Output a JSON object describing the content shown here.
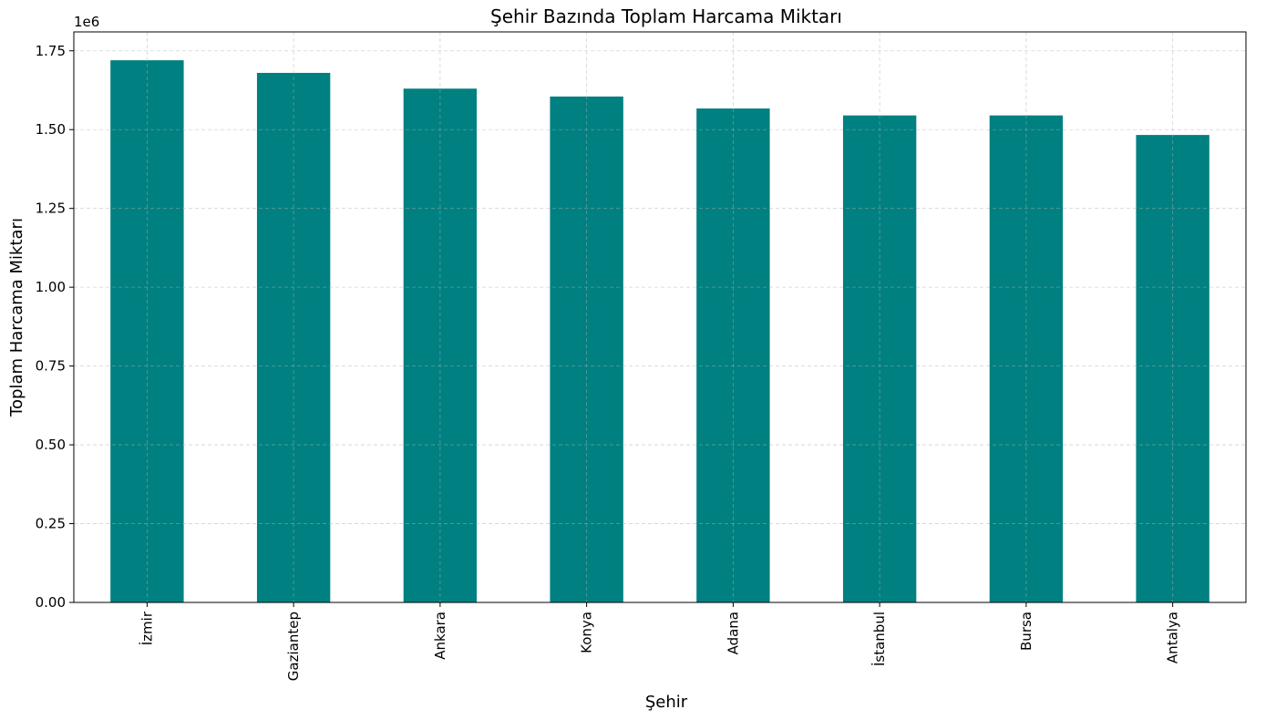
{
  "chart_data": {
    "type": "bar",
    "title": "Şehir Bazında Toplam Harcama Miktarı",
    "xlabel": "Şehir",
    "ylabel": "Toplam Harcama Miktarı",
    "y_offset_label": "1e6",
    "categories": [
      "İzmir",
      "Gaziantep",
      "Ankara",
      "Konya",
      "Adana",
      "İstanbul",
      "Bursa",
      "Antalya"
    ],
    "values": [
      1720000,
      1680000,
      1630000,
      1605000,
      1567000,
      1545000,
      1545000,
      1483000
    ],
    "ylim": [
      0,
      1810000
    ],
    "yticks": [
      0,
      250000,
      500000,
      750000,
      1000000,
      1250000,
      1500000,
      1750000
    ],
    "ytick_labels": [
      "0.00",
      "0.25",
      "0.50",
      "0.75",
      "1.00",
      "1.25",
      "1.50",
      "1.75"
    ],
    "bar_color": "#008080",
    "grid": true,
    "x_tick_rotation": 90
  }
}
